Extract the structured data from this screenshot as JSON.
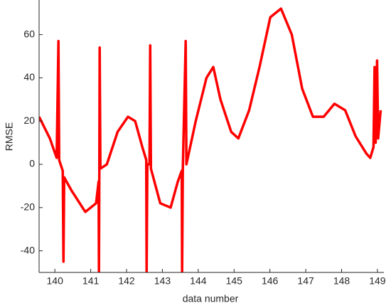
{
  "chart_data": {
    "type": "line",
    "x_label": "data number",
    "y_label": "RMSE",
    "x": [
      139.56,
      139.86,
      140.05,
      140.1,
      140.12,
      140.16,
      140.22,
      140.24,
      140.26,
      140.46,
      140.85,
      141.15,
      141.22,
      141.23,
      141.24,
      141.25,
      141.27,
      141.45,
      141.75,
      142.04,
      142.24,
      142.44,
      142.55,
      142.56,
      142.58,
      142.64,
      142.66,
      142.68,
      142.94,
      143.23,
      143.43,
      143.54,
      143.55,
      143.57,
      143.65,
      143.67,
      143.93,
      144.23,
      144.42,
      144.62,
      144.92,
      145.12,
      145.42,
      145.71,
      146.01,
      146.31,
      146.61,
      146.9,
      147.2,
      147.5,
      147.8,
      148.1,
      148.39,
      148.69,
      148.8,
      148.89,
      148.92,
      148.95,
      148.99,
      149.02,
      149.09
    ],
    "series": [
      {
        "color": "#ff0000",
        "values": [
          22,
          12,
          3,
          57,
          2,
          0,
          -3,
          -45,
          -6,
          -12,
          -22,
          -18,
          -8,
          -50,
          -5,
          54,
          -2,
          0,
          15,
          22,
          20,
          8,
          2,
          -50,
          0,
          0,
          55,
          -2,
          -18,
          -20,
          -8,
          -3,
          -50,
          -2,
          57,
          0,
          20,
          40,
          45,
          30,
          15,
          12,
          25,
          45,
          68,
          72,
          60,
          35,
          22,
          22,
          28,
          25,
          13,
          5,
          3,
          8,
          45,
          10,
          48,
          12,
          25
        ]
      }
    ],
    "xlim": [
      139.56,
      149.18
    ],
    "ylim": [
      -50,
      76
    ],
    "xticks": [
      140,
      141,
      142,
      143,
      144,
      145,
      146,
      147,
      148,
      149
    ],
    "yticks": [
      -40,
      -20,
      0,
      20,
      40,
      60
    ]
  }
}
